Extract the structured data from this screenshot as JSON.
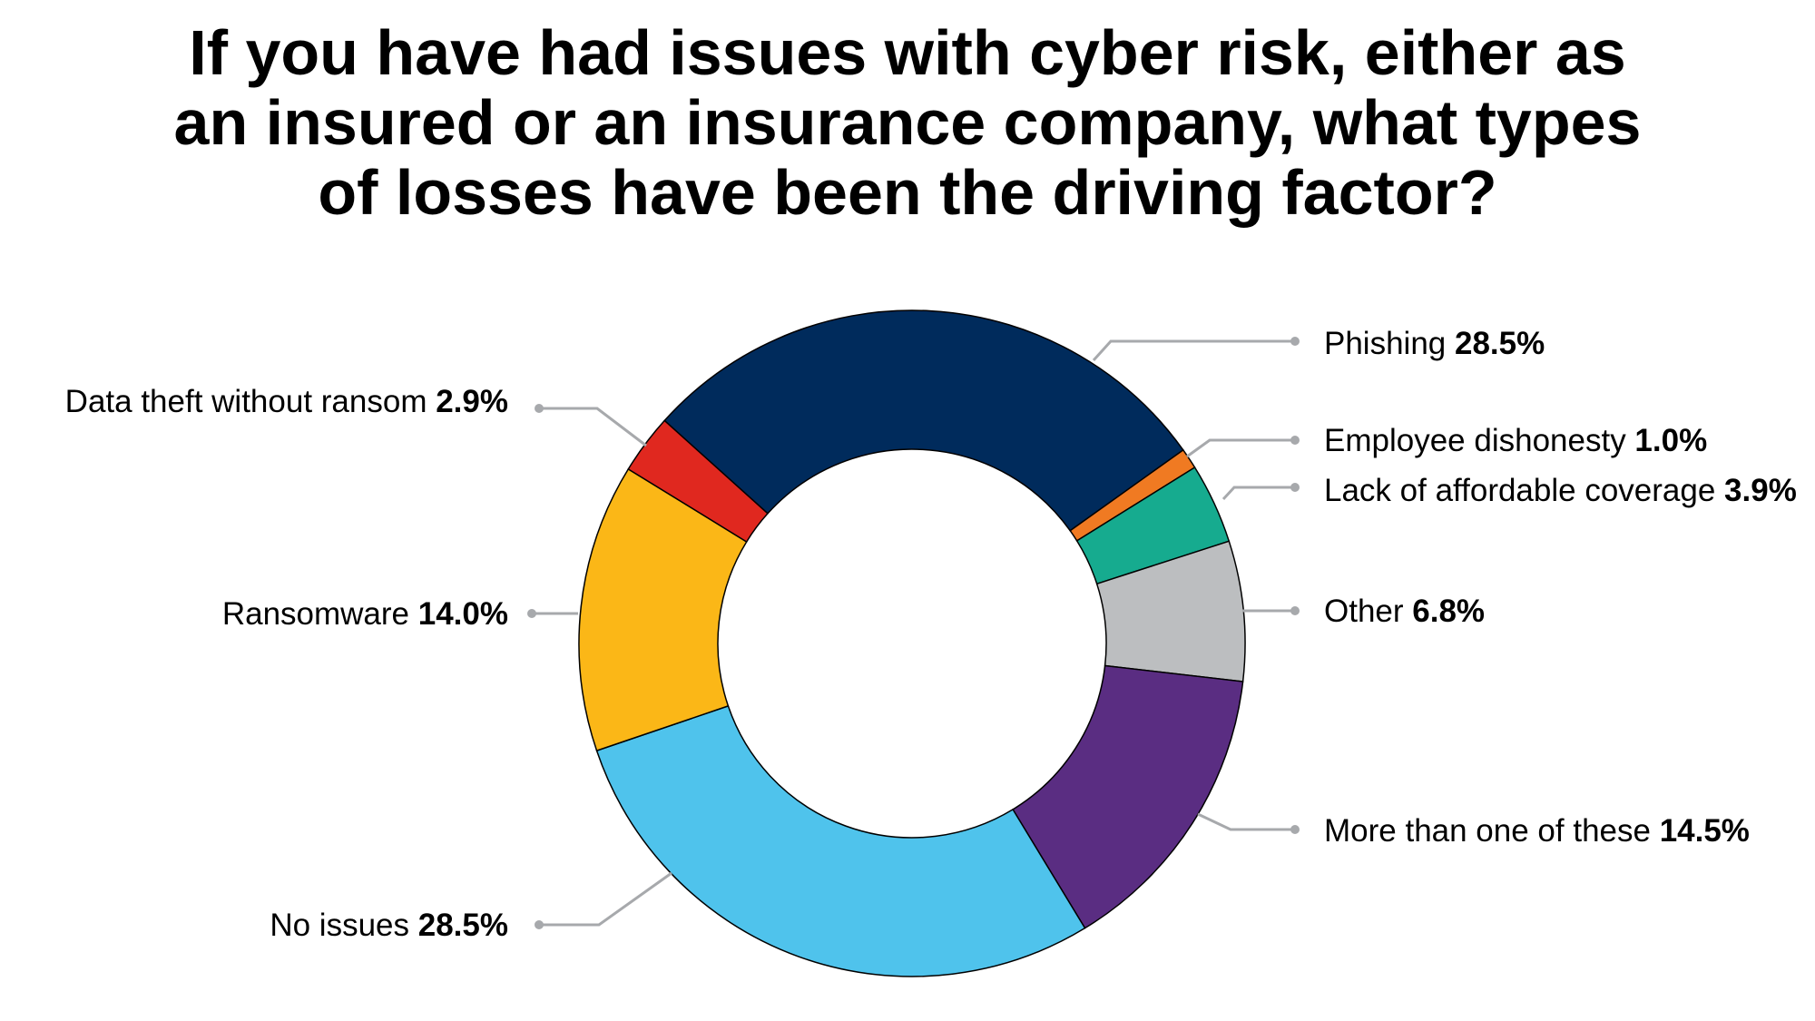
{
  "chart_data": {
    "type": "pie",
    "variant": "donut",
    "title_lines": [
      "If you have had issues with cyber risk, either as",
      "an insured or an insurance company, what types",
      "of losses have been the driving factor?"
    ],
    "slices": [
      {
        "label": "Phishing",
        "value": 28.5,
        "value_label": "28.5%",
        "color": "#002b5c"
      },
      {
        "label": "Employee dishonesty",
        "value": 1.0,
        "value_label": "1.0%",
        "color": "#f07a22"
      },
      {
        "label": "Lack of affordable coverage",
        "value": 3.9,
        "value_label": "3.9%",
        "color": "#16ab8f"
      },
      {
        "label": "Other",
        "value": 6.8,
        "value_label": "6.8%",
        "color": "#bcbec0"
      },
      {
        "label": "More than one of these",
        "value": 14.5,
        "value_label": "14.5%",
        "color": "#5a2d82"
      },
      {
        "label": "No issues",
        "value": 28.5,
        "value_label": "28.5%",
        "color": "#4fc3ec"
      },
      {
        "label": "Ransomware",
        "value": 14.0,
        "value_label": "14.0%",
        "color": "#fbb717"
      },
      {
        "label": "Data theft without ransom",
        "value": 2.9,
        "value_label": "2.9%",
        "color": "#e0281f"
      }
    ]
  }
}
